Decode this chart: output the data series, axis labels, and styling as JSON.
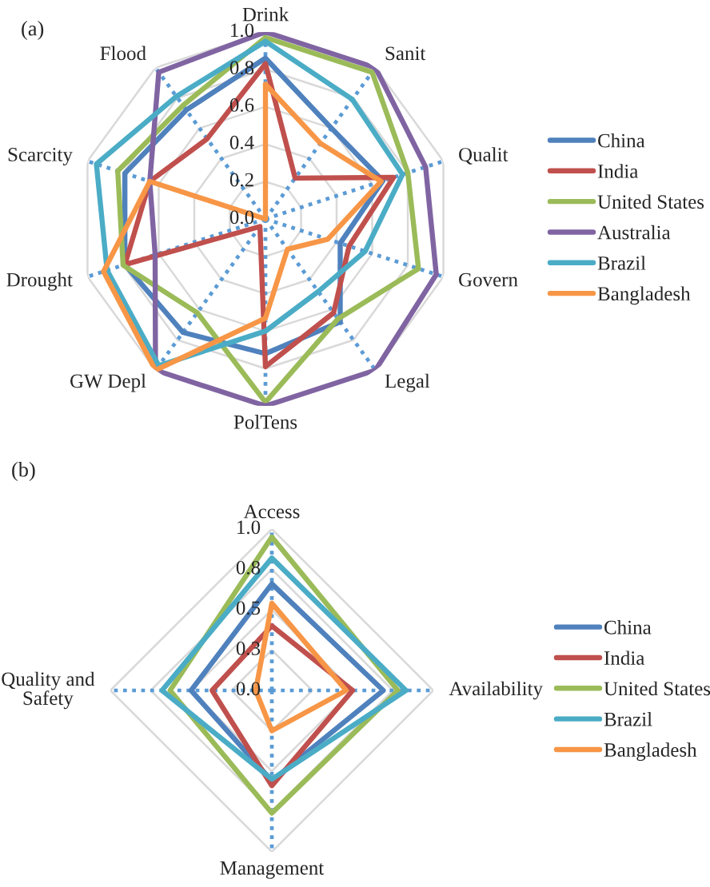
{
  "chart_data": [
    {
      "type": "radar",
      "title": "(a)",
      "categories": [
        "Drink",
        "Sanit",
        "Qualit",
        "Govern",
        "Legal",
        "PolTens",
        "GW Depl",
        "Drought",
        "Scarcity",
        "Flood"
      ],
      "series": [
        {
          "name": "China",
          "color": "#4f81bd",
          "values": [
            0.86,
            0.6,
            0.66,
            0.42,
            0.68,
            0.72,
            0.75,
            0.79,
            0.79,
            0.72
          ]
        },
        {
          "name": "India",
          "color": "#c0504d",
          "values": [
            0.83,
            0.27,
            0.72,
            0.47,
            0.62,
            0.79,
            0.05,
            0.79,
            0.65,
            0.53
          ]
        },
        {
          "name": "United States",
          "color": "#9bbb59",
          "values": [
            0.97,
            0.97,
            0.8,
            0.86,
            0.66,
            0.98,
            0.62,
            0.8,
            0.83,
            0.75
          ]
        },
        {
          "name": "Australia",
          "color": "#8064a2",
          "values": [
            1.0,
            1.0,
            0.9,
            0.96,
            1.0,
            1.0,
            1.0,
            0.62,
            0.65,
            0.97
          ]
        },
        {
          "name": "Brazil",
          "color": "#4bacc6",
          "values": [
            0.95,
            0.79,
            0.77,
            0.56,
            0.48,
            0.6,
            0.97,
            0.89,
            0.95,
            0.81
          ]
        },
        {
          "name": "Bangladesh",
          "color": "#f79646",
          "values": [
            0.72,
            0.5,
            0.65,
            0.35,
            0.2,
            0.53,
            1.0,
            0.91,
            0.65,
            0.0
          ]
        }
      ],
      "ylim": [
        0,
        1
      ],
      "yticks": [
        {
          "value": 0,
          "label": "0.0"
        },
        0.2,
        0.4,
        0.6,
        0.8,
        {
          "value": 1,
          "label": "1.0"
        }
      ],
      "grid": true,
      "legend": "right"
    },
    {
      "type": "radar",
      "title": "(b)",
      "categories": [
        "Access",
        "Availability",
        "Management",
        "Quality and\nSafety"
      ],
      "series": [
        {
          "name": "China",
          "color": "#4f81bd",
          "values": [
            0.66,
            0.69,
            0.56,
            0.5
          ]
        },
        {
          "name": "India",
          "color": "#c0504d",
          "values": [
            0.4,
            0.5,
            0.59,
            0.37
          ]
        },
        {
          "name": "United States",
          "color": "#9bbb59",
          "values": [
            0.95,
            0.78,
            0.76,
            0.63
          ]
        },
        {
          "name": "Brazil",
          "color": "#4bacc6",
          "values": [
            0.82,
            0.83,
            0.55,
            0.68
          ]
        },
        {
          "name": "Bangladesh",
          "color": "#f79646",
          "values": [
            0.54,
            0.46,
            0.25,
            0.1
          ]
        }
      ],
      "ylim": [
        0,
        1
      ],
      "yticks": [
        {
          "value": 0,
          "label": "0.0"
        },
        {
          "value": 0.25,
          "label": "0.3"
        },
        0.5,
        {
          "value": 0.75,
          "label": "0.8"
        },
        {
          "value": 1,
          "label": "1.0"
        }
      ],
      "grid": true,
      "legend": "right"
    }
  ]
}
